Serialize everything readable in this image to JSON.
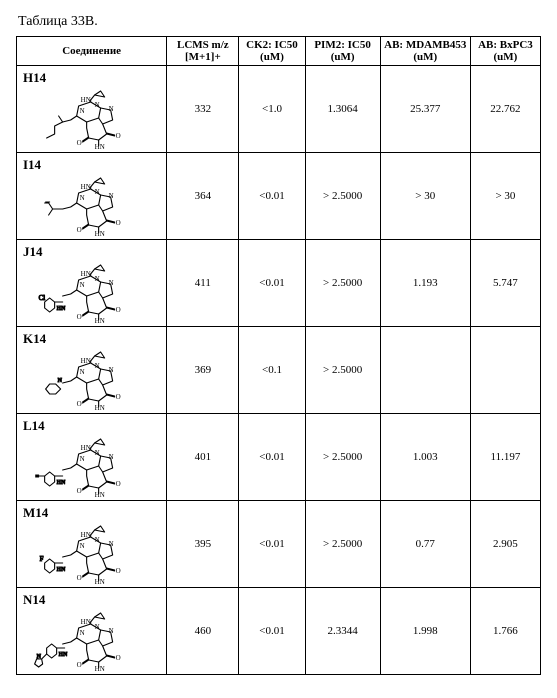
{
  "caption": "Таблица 33B.",
  "columns": [
    "Соединение",
    "LCMS m/z [M+1]+",
    "CK2: IC50 (uM)",
    "PIM2: IC50 (uM)",
    "AB: MDAMB453 (uM)",
    "AB: BxPC3 (uM)"
  ],
  "rows": [
    {
      "id": "H14",
      "lcms": "332",
      "ck2": "<1.0",
      "pim2": "1.3064",
      "mdamb": "25.377",
      "bxpc3": "22.762"
    },
    {
      "id": "I14",
      "lcms": "364",
      "ck2": "<0.01",
      "pim2": "> 2.5000",
      "mdamb": "> 30",
      "bxpc3": "> 30"
    },
    {
      "id": "J14",
      "lcms": "411",
      "ck2": "<0.01",
      "pim2": "> 2.5000",
      "mdamb": "1.193",
      "bxpc3": "5.747"
    },
    {
      "id": "K14",
      "lcms": "369",
      "ck2": "<0.1",
      "pim2": "> 2.5000",
      "mdamb": "",
      "bxpc3": ""
    },
    {
      "id": "L14",
      "lcms": "401",
      "ck2": "<0.01",
      "pim2": "> 2.5000",
      "mdamb": "1.003",
      "bxpc3": "11.197"
    },
    {
      "id": "M14",
      "lcms": "395",
      "ck2": "<0.01",
      "pim2": "> 2.5000",
      "mdamb": "0.77",
      "bxpc3": "2.905"
    },
    {
      "id": "N14",
      "lcms": "460",
      "ck2": "<0.01",
      "pim2": "2.3344",
      "mdamb": "1.998",
      "bxpc3": "1.766"
    }
  ],
  "style": {
    "stroke": "#000000",
    "stroke_width": 1.1,
    "font": "Times New Roman"
  }
}
